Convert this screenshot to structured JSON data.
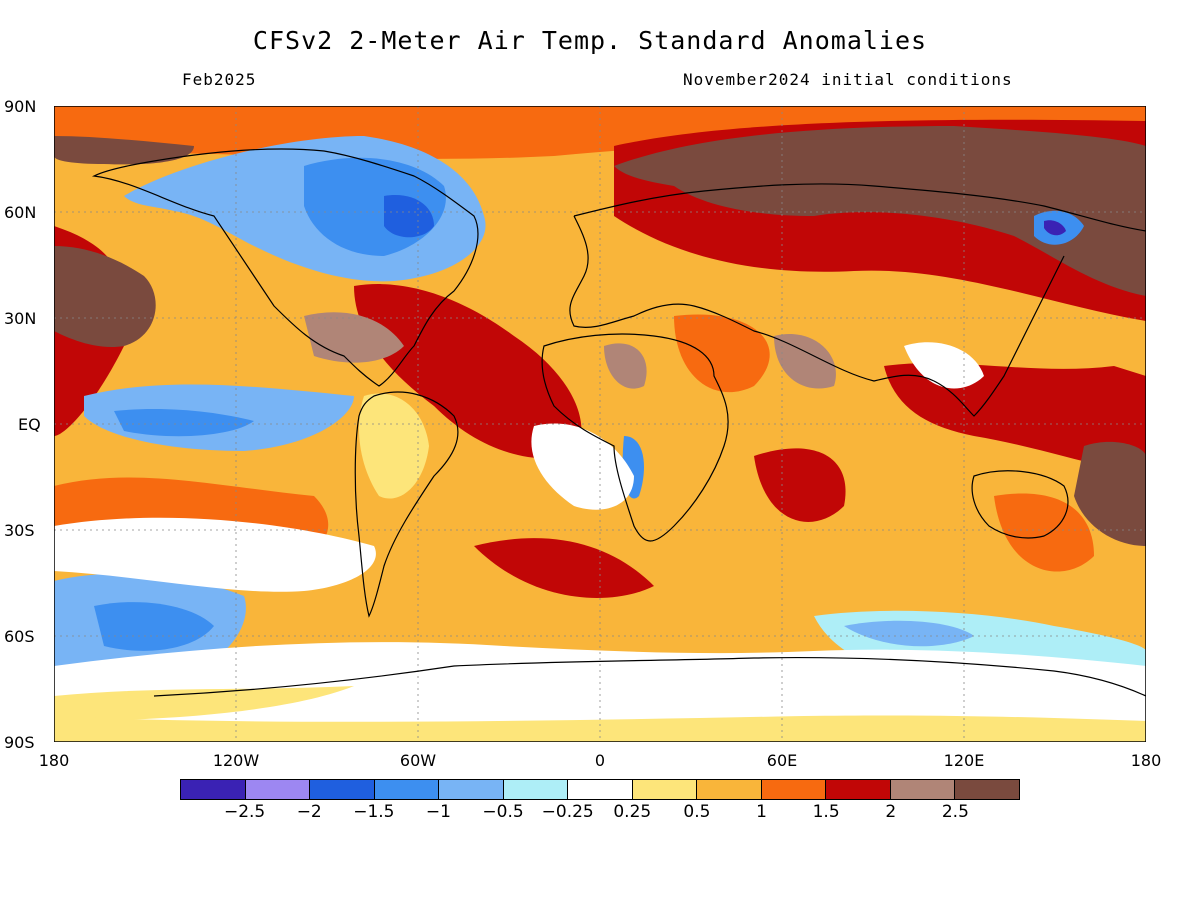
{
  "title": "CFSv2 2-Meter Air Temp. Standard Anomalies",
  "subtitle_left": "Feb2025",
  "subtitle_right": "November2024 initial conditions",
  "lat_labels": [
    "90N",
    "60N",
    "30N",
    "EQ",
    "30S",
    "60S",
    "90S"
  ],
  "lon_labels": [
    "180",
    "120W",
    "60W",
    "0",
    "60E",
    "120E",
    "180"
  ],
  "colorbar": {
    "colors": [
      "#3a22b4",
      "#9d87f2",
      "#1f5fdf",
      "#3d8ff0",
      "#78b4f5",
      "#aeeef7",
      "#ffffff",
      "#fde57a",
      "#f9b53a",
      "#f76a10",
      "#c10606",
      "#b08577",
      "#7a4a3e"
    ],
    "labels": [
      "-2.5",
      "-2",
      "-1.5",
      "-1",
      "-0.5",
      "-0.25",
      "0.25",
      "0.5",
      "1",
      "1.5",
      "2",
      "2.5"
    ]
  }
}
